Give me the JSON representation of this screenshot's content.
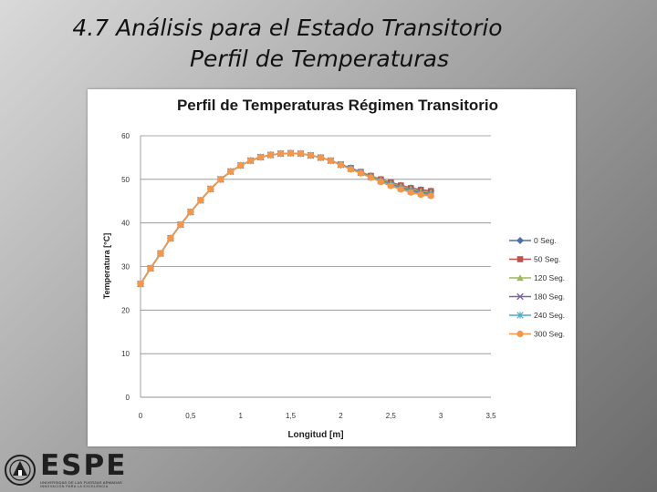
{
  "slide": {
    "title_line1": "4.7    Análisis para el Estado Transitorio",
    "title_line2": "Perfil de Temperaturas"
  },
  "logo": {
    "name": "ESPE",
    "subtitle": "UNIVERSIDAD DE LAS FUERZAS ARMADAS",
    "motto": "INNOVACIÓN PARA LA EXCELENCIA",
    "icon": "university-seal-icon"
  },
  "chart_data": {
    "type": "line",
    "title": "Perfil de Temperaturas Régimen Transitorio",
    "xlabel": "Longitud [m]",
    "ylabel": "Temperatura [°C]",
    "xlim": [
      0,
      3.5
    ],
    "ylim": [
      0,
      60
    ],
    "xticks": [
      "0",
      "0,5",
      "1",
      "1,5",
      "2",
      "2,5",
      "3",
      "3,5"
    ],
    "yticks": [
      "0",
      "10",
      "20",
      "30",
      "40",
      "50",
      "60"
    ],
    "grid": true,
    "legend_position": "right",
    "x": [
      0,
      0.1,
      0.2,
      0.3,
      0.4,
      0.5,
      0.6,
      0.7,
      0.8,
      0.9,
      1.0,
      1.1,
      1.2,
      1.3,
      1.4,
      1.5,
      1.6,
      1.7,
      1.8,
      1.9,
      2.0,
      2.1,
      2.2,
      2.3,
      2.4,
      2.5,
      2.6,
      2.7,
      2.8,
      2.9
    ],
    "series": [
      {
        "name": "0 Seg.",
        "color": "#4f6fa8",
        "marker": "diamond",
        "values": [
          26,
          29.6,
          33,
          36.5,
          39.6,
          42.5,
          45.2,
          47.8,
          50,
          51.8,
          53.2,
          54.3,
          55.1,
          55.6,
          55.9,
          56,
          55.9,
          55.5,
          55,
          54.3,
          53.4,
          52.6,
          51.7,
          50.8,
          50,
          49.3,
          48.6,
          48,
          47.6,
          47.3
        ]
      },
      {
        "name": "50 Seg.",
        "color": "#c0504d",
        "marker": "square",
        "values": [
          26,
          29.6,
          33,
          36.5,
          39.6,
          42.5,
          45.2,
          47.8,
          50,
          51.8,
          53.2,
          54.3,
          55.1,
          55.6,
          55.9,
          56,
          55.9,
          55.5,
          55,
          54.3,
          53.4,
          52.6,
          51.7,
          50.8,
          50,
          49.3,
          48.6,
          48,
          47.6,
          47.3
        ]
      },
      {
        "name": "120 Seg.",
        "color": "#9bbb59",
        "marker": "triangle",
        "values": [
          26,
          29.6,
          33,
          36.5,
          39.6,
          42.5,
          45.2,
          47.8,
          50,
          51.8,
          53.2,
          54.3,
          55.1,
          55.6,
          55.9,
          56,
          55.9,
          55.5,
          55,
          54.3,
          53.4,
          52.6,
          51.7,
          50.8,
          49.9,
          49.1,
          48.4,
          47.8,
          47.3,
          47
        ]
      },
      {
        "name": "180 Seg.",
        "color": "#8064a2",
        "marker": "x",
        "values": [
          26,
          29.6,
          33,
          36.5,
          39.6,
          42.5,
          45.2,
          47.8,
          50,
          51.8,
          53.2,
          54.3,
          55.1,
          55.6,
          55.9,
          56,
          55.9,
          55.5,
          55,
          54.3,
          53.4,
          52.5,
          51.6,
          50.6,
          49.7,
          48.9,
          48.1,
          47.5,
          47,
          46.7
        ]
      },
      {
        "name": "240 Seg.",
        "color": "#4bacc6",
        "marker": "star",
        "values": [
          26,
          29.6,
          33,
          36.5,
          39.6,
          42.5,
          45.2,
          47.8,
          50,
          51.8,
          53.2,
          54.3,
          55.1,
          55.6,
          55.9,
          56,
          55.9,
          55.5,
          55,
          54.3,
          53.3,
          52.4,
          51.5,
          50.5,
          49.6,
          48.7,
          47.9,
          47.2,
          46.7,
          46.4
        ]
      },
      {
        "name": "300 Seg.",
        "color": "#f79646",
        "marker": "circle",
        "values": [
          26,
          29.6,
          33,
          36.5,
          39.6,
          42.5,
          45.2,
          47.8,
          50,
          51.8,
          53.2,
          54.3,
          55.1,
          55.6,
          55.9,
          56,
          55.9,
          55.5,
          55,
          54.3,
          53.3,
          52.3,
          51.4,
          50.4,
          49.4,
          48.5,
          47.7,
          47,
          46.5,
          46.2
        ]
      }
    ]
  }
}
